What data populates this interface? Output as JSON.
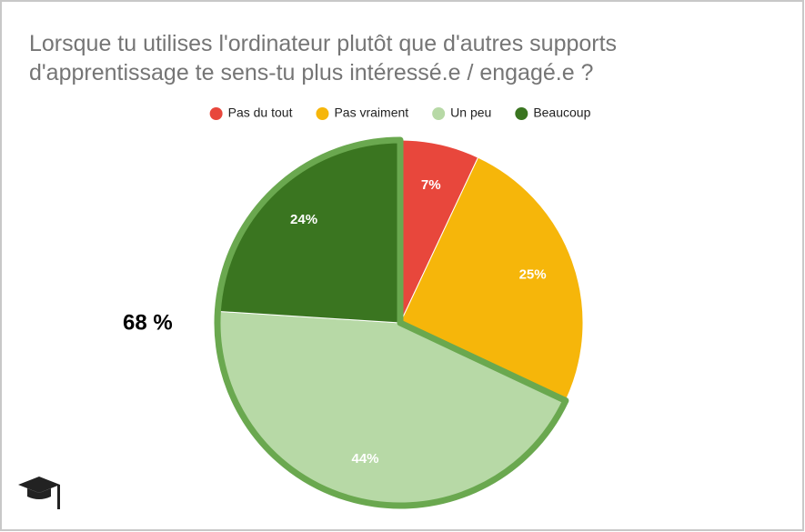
{
  "chart_data": {
    "type": "pie",
    "title": [
      "Lorsque tu utilises l'ordinateur plutôt que d'autres supports",
      "d'apprentissage te sens-tu plus intéressé.e / engagé.e ?"
    ],
    "categories": [
      "Pas du tout",
      "Pas vraiment",
      "Un peu",
      "Beaucoup"
    ],
    "values": [
      7,
      25,
      44,
      24
    ],
    "value_labels": [
      "7%",
      "25%",
      "44%",
      "24%"
    ],
    "colors": [
      "#e8473c",
      "#f6b60a",
      "#b7d9a6",
      "#3a7520"
    ],
    "legend": "top",
    "annotation": "68 %",
    "highlight_color": "#6aa84f"
  }
}
